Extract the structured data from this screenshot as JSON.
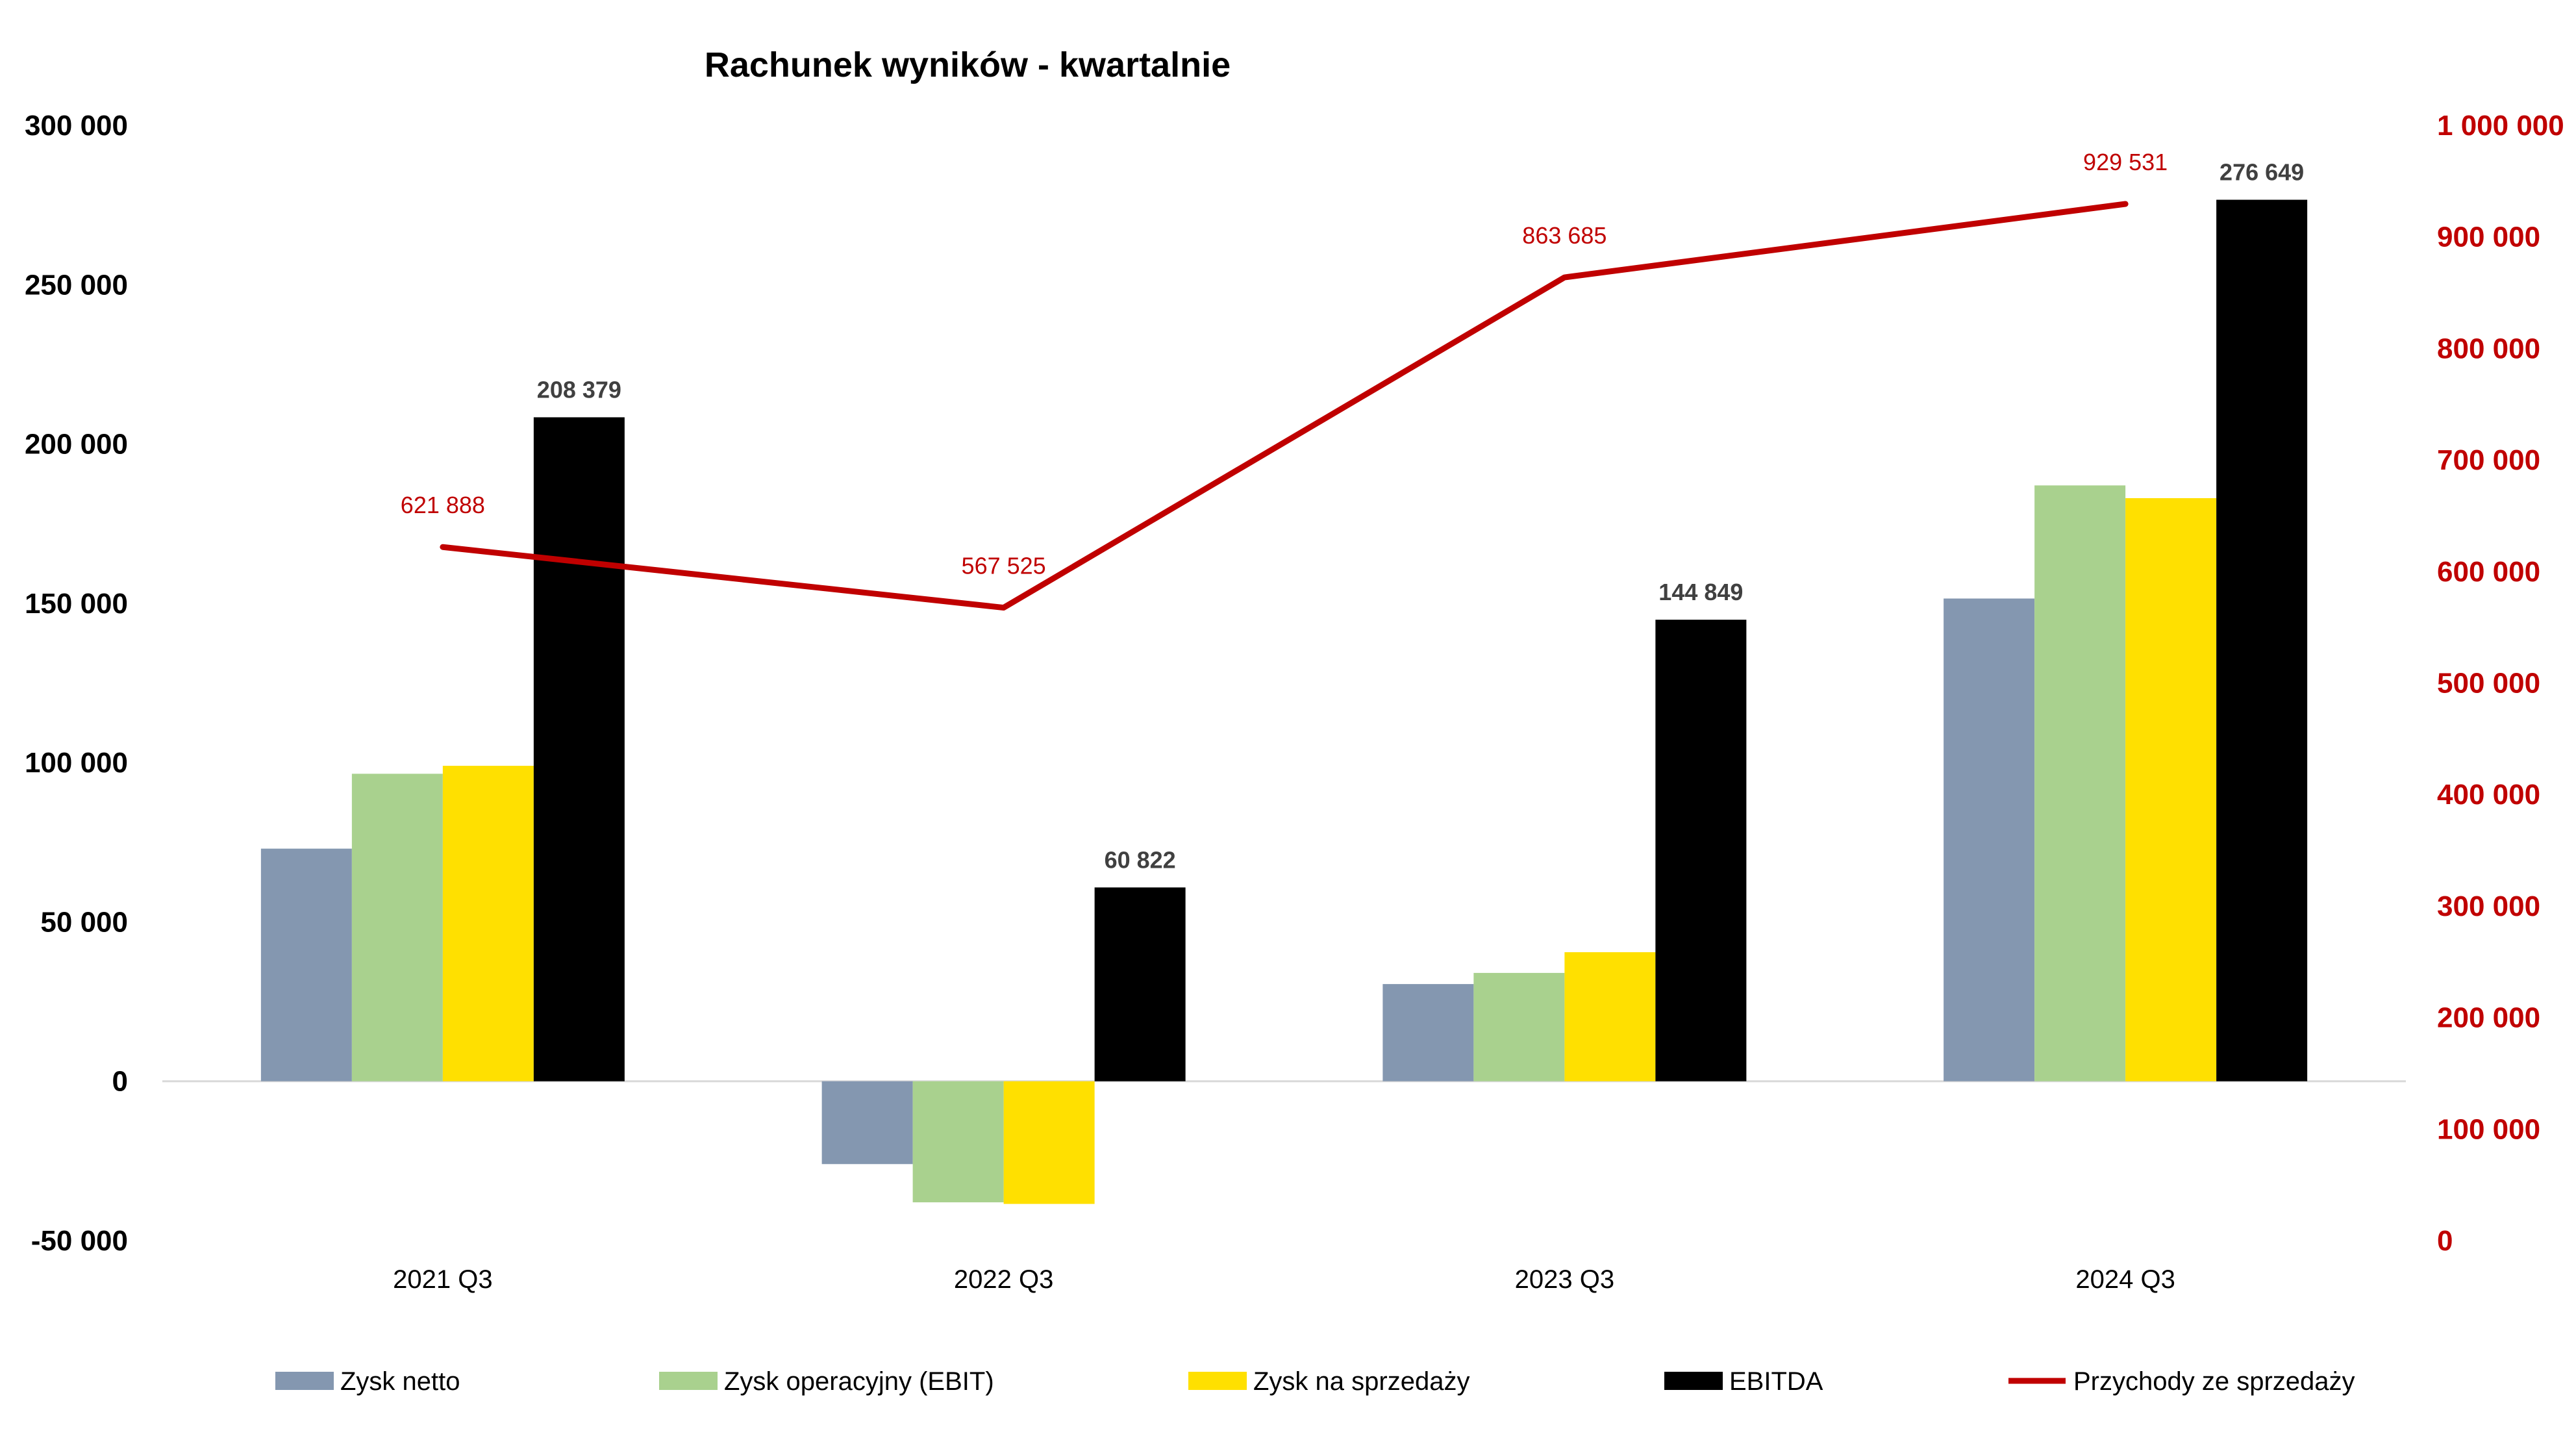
{
  "chart_data": {
    "type": "bar",
    "title": "Rachunek wyników - kwartalnie",
    "categories": [
      "2021 Q3",
      "2022 Q3",
      "2023 Q3",
      "2024 Q3"
    ],
    "y_left": {
      "range": [
        -50000,
        300000
      ],
      "ticks": [
        300000,
        250000,
        200000,
        150000,
        100000,
        50000,
        0,
        -50000
      ],
      "tick_labels": [
        "300 000",
        "250 000",
        "200 000",
        "150 000",
        "100 000",
        "50 000",
        "0",
        "-50 000"
      ]
    },
    "y_right": {
      "range": [
        0,
        1000000
      ],
      "ticks": [
        1000000,
        900000,
        800000,
        700000,
        600000,
        500000,
        400000,
        300000,
        200000,
        100000,
        0
      ],
      "tick_labels": [
        "1 000 000",
        "900 000",
        "800 000",
        "700 000",
        "600 000",
        "500 000",
        "400 000",
        "300 000",
        "200 000",
        "100 000",
        "0"
      ]
    },
    "series": [
      {
        "name": "Zysk netto",
        "kind": "bar",
        "axis": "left",
        "color": "#8497b0",
        "values": [
          73000,
          -26000,
          30500,
          151500
        ],
        "labels": [
          "",
          "",
          "",
          ""
        ]
      },
      {
        "name": "Zysk operacyjny (EBIT)",
        "kind": "bar",
        "axis": "left",
        "color": "#a9d18e",
        "values": [
          96500,
          -38000,
          34000,
          187000
        ],
        "labels": [
          "",
          "",
          "",
          ""
        ]
      },
      {
        "name": "Zysk na sprzedaży",
        "kind": "bar",
        "axis": "left",
        "color": "#ffe000",
        "values": [
          99000,
          -38500,
          40500,
          183000
        ],
        "labels": [
          "",
          "",
          "",
          ""
        ]
      },
      {
        "name": "EBITDA",
        "kind": "bar",
        "axis": "left",
        "color": "#000000",
        "values": [
          208379,
          60822,
          144849,
          276649
        ],
        "labels": [
          "208 379",
          "60 822",
          "144 849",
          "276 649"
        ]
      },
      {
        "name": "Przychody ze sprzedaży",
        "kind": "line",
        "axis": "right",
        "color": "#c00000",
        "values": [
          621888,
          567525,
          863685,
          929531
        ],
        "labels": [
          "621 888",
          "567 525",
          "863 685",
          "929 531"
        ]
      }
    ],
    "legend_position": "bottom",
    "grid": false
  }
}
